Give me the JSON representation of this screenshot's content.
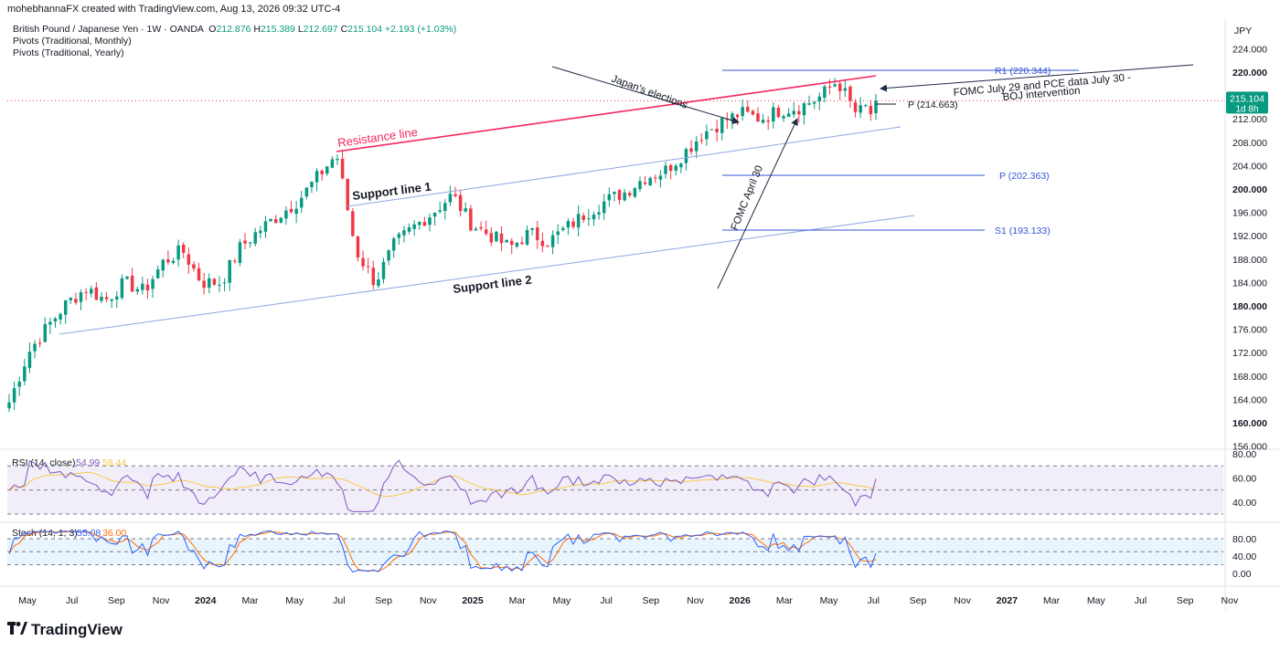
{
  "header": "mohebhannaFX created with TradingView.com, Aug 13, 2026 09:32 UTC-4",
  "legend": {
    "symbol": "British Pound / Japanese Yen · 1W · OANDA",
    "o_label": "O",
    "o": "212.876",
    "h_label": "H",
    "h": "215.389",
    "l_label": "L",
    "l": "212.697",
    "c_label": "C",
    "c": "215.104",
    "change": "+2.193 (+1.03%)",
    "line2": "Pivots (Traditional, Monthly)",
    "line3": "Pivots (Traditional, Yearly)"
  },
  "currency": "JPY",
  "colors": {
    "up": "#089981",
    "down": "#f23645",
    "resistance": "#f7255f",
    "pivot": "#3355d6",
    "support": "#8fa7e0",
    "arrow": "#1e2a44",
    "rsi": "#7e57c2",
    "rsi_ma": "#f7c948",
    "stoch_k": "#2962ff",
    "stoch_d": "#ff6d00",
    "price_tag": "#089981"
  },
  "price_axis": [
    "224.000",
    "220.000",
    "216.000",
    "212.000",
    "208.000",
    "204.000",
    "200.000",
    "196.000",
    "192.000",
    "188.000",
    "184.000",
    "180.000",
    "176.000",
    "172.000",
    "168.000",
    "164.000",
    "160.000",
    "156.000"
  ],
  "bold_prices": [
    "220.000",
    "200.000",
    "180.000",
    "160.000"
  ],
  "price_tag": {
    "price": "215.104",
    "countdown": "1d 8h"
  },
  "time_axis": [
    {
      "label": "May",
      "bold": false
    },
    {
      "label": "Jul",
      "bold": false
    },
    {
      "label": "Sep",
      "bold": false
    },
    {
      "label": "Nov",
      "bold": false
    },
    {
      "label": "2024",
      "bold": true
    },
    {
      "label": "Mar",
      "bold": false
    },
    {
      "label": "May",
      "bold": false
    },
    {
      "label": "Jul",
      "bold": false
    },
    {
      "label": "Sep",
      "bold": false
    },
    {
      "label": "Nov",
      "bold": false
    },
    {
      "label": "2025",
      "bold": true
    },
    {
      "label": "Mar",
      "bold": false
    },
    {
      "label": "May",
      "bold": false
    },
    {
      "label": "Jul",
      "bold": false
    },
    {
      "label": "Sep",
      "bold": false
    },
    {
      "label": "Nov",
      "bold": false
    },
    {
      "label": "2026",
      "bold": true
    },
    {
      "label": "Mar",
      "bold": false
    },
    {
      "label": "May",
      "bold": false
    },
    {
      "label": "Jul",
      "bold": false
    },
    {
      "label": "Sep",
      "bold": false
    },
    {
      "label": "Nov",
      "bold": false
    },
    {
      "label": "2027",
      "bold": true
    },
    {
      "label": "Mar",
      "bold": false
    },
    {
      "label": "May",
      "bold": false
    },
    {
      "label": "Jul",
      "bold": false
    },
    {
      "label": "Sep",
      "bold": false
    },
    {
      "label": "Nov",
      "bold": false
    }
  ],
  "annotations": {
    "resistance": "Resistance line",
    "support1": "Support line 1",
    "support2": "Support line 2",
    "japan": "Japan's elections",
    "fomc_april": "FOMC April 30",
    "fomc_july_1": "FOMC July 29 and PCE data July 30 -",
    "fomc_july_2": "BOJ intervention"
  },
  "pivots": {
    "r1": "R1 (220.344)",
    "p_monthly": "P (214.663)",
    "p_yearly": "P (202.363)",
    "s1": "S1 (193.133)"
  },
  "rsi": {
    "title": "RSI (14, close)",
    "value": "54.99",
    "ma": "58.44",
    "axis": [
      "80.00",
      "60.00",
      "40.00"
    ]
  },
  "stoch": {
    "title": "Stoch (14, 1, 3)",
    "k": "55.08",
    "d": "36.00",
    "axis": [
      "80.00",
      "40.00",
      "0.00"
    ]
  },
  "logo": "TradingView",
  "chart_data": {
    "type": "candlestick",
    "title": "British Pound / Japanese Yen · 1W · OANDA",
    "ylabel": "JPY",
    "ylim": [
      154,
      226
    ],
    "x_range": [
      "2023-04",
      "2026-08"
    ],
    "key_levels": {
      "R1": 220.344,
      "P_monthly": 214.663,
      "P_yearly": 202.363,
      "S1": 193.133
    },
    "last_close": 215.104,
    "close_path_approx": [
      163.5,
      172,
      176.5,
      180.5,
      183,
      181,
      184,
      182.5,
      187.5,
      189.5,
      184,
      184,
      190,
      193,
      195.5,
      198,
      202,
      206,
      189.5,
      184,
      190.5,
      193.5,
      196,
      199,
      194,
      192,
      190,
      192.5,
      191,
      193.5,
      196,
      198,
      199.5,
      202,
      203,
      206,
      209.5,
      211.5,
      213,
      212,
      213.5,
      214,
      215.5,
      218.5,
      212.8,
      215.1
    ]
  }
}
